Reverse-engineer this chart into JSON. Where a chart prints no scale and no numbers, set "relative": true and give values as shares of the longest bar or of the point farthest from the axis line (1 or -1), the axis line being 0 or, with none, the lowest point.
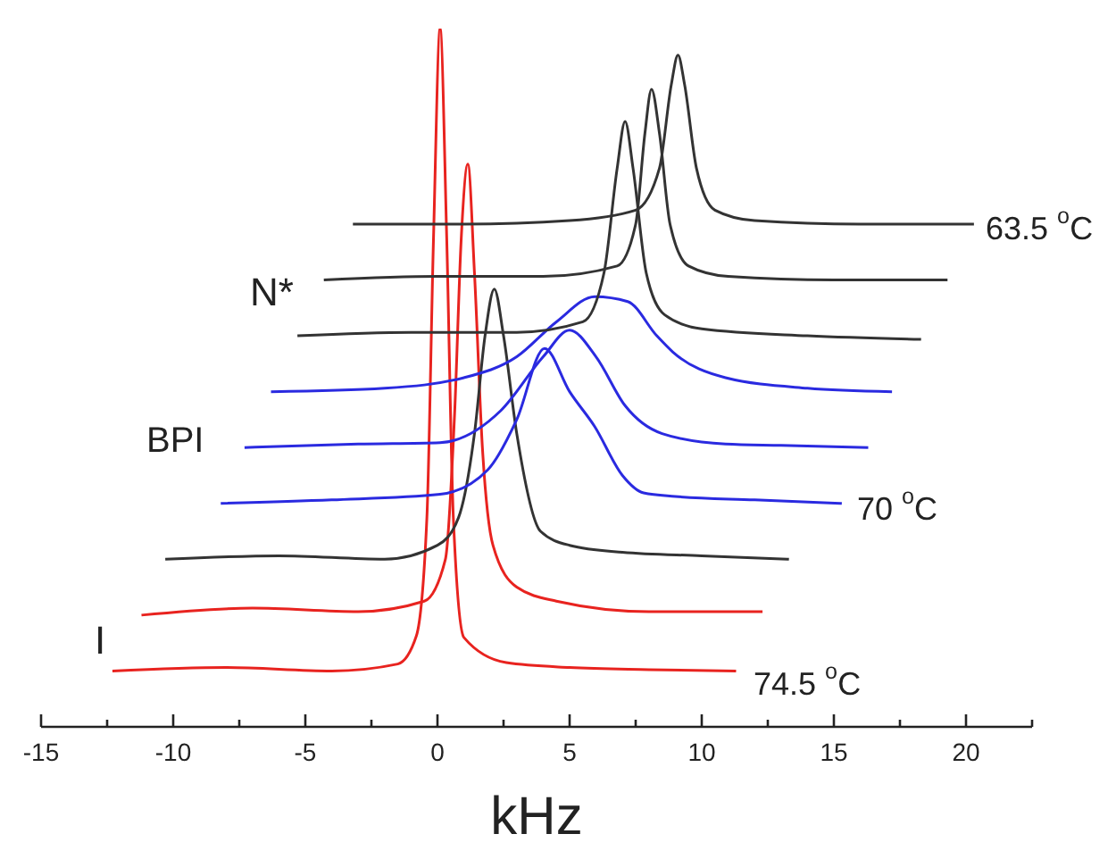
{
  "chart_data": {
    "type": "line",
    "relative": true,
    "xlabel": "kHz",
    "xlim": [
      -15,
      22.5
    ],
    "xticks": [
      -15,
      {
        "value": -12.5,
        "label": null
      },
      -10,
      {
        "value": -7.5,
        "label": null
      },
      -5,
      {
        "value": -2.5,
        "label": null
      },
      0,
      {
        "value": 2.5,
        "label": null
      },
      5,
      {
        "value": 7.5,
        "label": null
      },
      10,
      {
        "value": 12.5,
        "label": null
      },
      15,
      {
        "value": 17.5,
        "label": null
      },
      20,
      {
        "value": 22.5,
        "label": null
      }
    ],
    "series": [
      {
        "color": "#e8231f",
        "x": [
          -12.3,
          -8,
          -4,
          -1.5,
          -0.8,
          -0.4,
          -0.15,
          0.1,
          0.35,
          0.6,
          1.0,
          2.6,
          5,
          8,
          11.3
        ],
        "values": [
          0.08,
          0.085,
          0.08,
          0.09,
          0.13,
          0.3,
          0.7,
          1,
          0.7,
          0.3,
          0.128,
          0.092,
          0.085,
          0.082,
          0.08
        ]
      },
      {
        "color": "#e8231f",
        "x": [
          -11.2,
          -7,
          -3,
          -0.5,
          0.3,
          0.65,
          0.9,
          1.15,
          1.4,
          1.7,
          2.1,
          3,
          4.5,
          8,
          12.3
        ],
        "values": [
          0.16,
          0.17,
          0.165,
          0.18,
          0.24,
          0.45,
          0.7,
          0.806,
          0.65,
          0.4,
          0.26,
          0.2,
          0.18,
          0.165,
          0.165
        ]
      },
      {
        "color": "#333333",
        "x": [
          -10.3,
          -6,
          -2,
          0,
          0.8,
          1.4,
          1.8,
          2.15,
          2.5,
          3,
          3.9,
          5,
          7,
          10,
          13.3
        ],
        "values": [
          0.24,
          0.245,
          0.24,
          0.26,
          0.3,
          0.42,
          0.56,
          0.627,
          0.56,
          0.42,
          0.28,
          0.26,
          0.25,
          0.245,
          0.24
        ]
      },
      {
        "color": "#2a2ae0",
        "x": [
          -8.2,
          -4,
          0.1,
          1.9,
          3,
          4.05,
          5,
          5.95,
          7,
          7.8,
          9,
          12,
          15.3
        ],
        "values": [
          0.32,
          0.325,
          0.333,
          0.368,
          0.44,
          0.542,
          0.48,
          0.43,
          0.36,
          0.335,
          0.33,
          0.325,
          0.32
        ]
      },
      {
        "color": "#2a2ae0",
        "x": [
          -7.3,
          -3,
          0.1,
          2.4,
          4,
          5,
          6,
          7.1,
          8.5,
          10.9,
          13,
          16.3
        ],
        "values": [
          0.4,
          0.405,
          0.407,
          0.453,
          0.53,
          0.568,
          0.53,
          0.46,
          0.42,
          0.405,
          0.403,
          0.4
        ]
      },
      {
        "color": "#2a2ae0",
        "x": [
          -6.3,
          -2,
          1,
          3,
          4.5,
          5.95,
          7.2,
          8.3,
          8.9,
          10.9,
          14,
          17.2
        ],
        "values": [
          0.48,
          0.485,
          0.5,
          0.53,
          0.58,
          0.616,
          0.609,
          0.56,
          0.537,
          0.5,
          0.485,
          0.48
        ]
      },
      {
        "color": "#333333",
        "x": [
          -5.3,
          -1,
          3,
          5.5,
          6.3,
          6.8,
          7.1,
          7.4,
          7.9,
          8.6,
          10,
          14,
          18.3
        ],
        "values": [
          0.56,
          0.565,
          0.565,
          0.58,
          0.65,
          0.8,
          0.867,
          0.8,
          0.65,
          0.59,
          0.57,
          0.56,
          0.555
        ]
      },
      {
        "color": "#333333",
        "x": [
          -4.3,
          0,
          4,
          6.8,
          7.5,
          7.85,
          8.1,
          8.4,
          8.8,
          9.5,
          11,
          15,
          19.3
        ],
        "values": [
          0.64,
          0.645,
          0.645,
          0.66,
          0.72,
          0.85,
          0.913,
          0.85,
          0.72,
          0.66,
          0.645,
          0.64,
          0.64
        ]
      },
      {
        "color": "#333333",
        "x": [
          -3.2,
          1,
          5,
          7.5,
          8.4,
          8.85,
          9.1,
          9.35,
          9.8,
          10.5,
          12,
          16,
          20.3
        ],
        "values": [
          0.72,
          0.72,
          0.725,
          0.74,
          0.8,
          0.92,
          0.962,
          0.92,
          0.8,
          0.74,
          0.725,
          0.72,
          0.72
        ]
      }
    ],
    "annotations": [
      "63.5 $^{o}$C",
      "70 $^{o}$C",
      "74.5 $^{o}$C",
      "N*",
      "BPI",
      "I"
    ]
  }
}
